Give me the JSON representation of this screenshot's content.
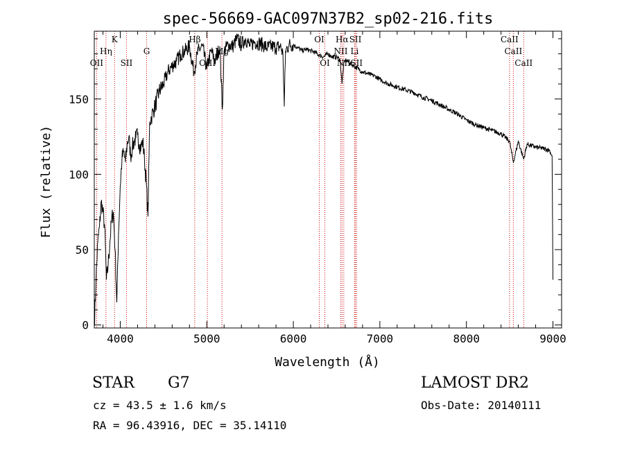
{
  "chart_data": {
    "type": "line",
    "title": "spec-56669-GAC097N37B2_sp02-216.fits",
    "xlabel": "Wavelength (Å)",
    "ylabel": "Flux (relative)",
    "xlim": [
      3700,
      9100
    ],
    "ylim": [
      -2,
      195
    ],
    "xticks": [
      4000,
      5000,
      6000,
      7000,
      8000,
      9000
    ],
    "yticks": [
      0,
      50,
      100,
      150
    ],
    "series": [
      {
        "x": [
          3700,
          3720,
          3740,
          3760,
          3780,
          3800,
          3820,
          3840,
          3860,
          3880,
          3900,
          3920,
          3940,
          3960,
          3980,
          4000,
          4020,
          4040,
          4060,
          4080,
          4100,
          4120,
          4140,
          4160,
          4180,
          4200,
          4220,
          4240,
          4260,
          4280,
          4300,
          4320,
          4340,
          4360,
          4380,
          4400,
          4450,
          4500,
          4550,
          4600,
          4650,
          4700,
          4750,
          4800,
          4850,
          4900,
          4950,
          5000,
          5050,
          5100,
          5150,
          5180,
          5200,
          5250,
          5300,
          5350,
          5400,
          5450,
          5500,
          5550,
          5600,
          5650,
          5700,
          5750,
          5800,
          5850,
          5880,
          5895,
          5910,
          5950,
          6000,
          6050,
          6100,
          6150,
          6200,
          6250,
          6300,
          6350,
          6400,
          6450,
          6500,
          6540,
          6563,
          6580,
          6600,
          6650,
          6700,
          6750,
          6800,
          6850,
          6900,
          6950,
          7000,
          7100,
          7200,
          7300,
          7400,
          7500,
          7600,
          7700,
          7800,
          7900,
          8000,
          8100,
          8200,
          8300,
          8400,
          8498,
          8542,
          8600,
          8662,
          8700,
          8800,
          8900,
          8960,
          8990,
          9000
        ],
        "y": [
          0,
          30,
          55,
          65,
          82,
          75,
          65,
          30,
          40,
          55,
          70,
          75,
          50,
          15,
          60,
          92,
          110,
          115,
          108,
          120,
          125,
          112,
          118,
          122,
          124,
          126,
          120,
          118,
          122,
          110,
          95,
          72,
          135,
          138,
          142,
          145,
          155,
          160,
          168,
          172,
          175,
          180,
          182,
          185,
          168,
          182,
          185,
          170,
          182,
          175,
          185,
          143,
          182,
          186,
          185,
          190,
          186,
          190,
          185,
          188,
          187,
          186,
          184,
          185,
          184,
          185,
          180,
          145,
          182,
          186,
          186,
          184,
          182,
          183,
          182,
          181,
          179,
          178,
          180,
          178,
          178,
          176,
          160,
          172,
          176,
          174,
          172,
          170,
          168,
          167,
          166,
          165,
          163,
          160,
          158,
          156,
          154,
          151,
          149,
          146,
          143,
          140,
          136,
          133,
          131,
          129,
          127,
          122,
          108,
          122,
          110,
          120,
          118,
          117,
          116,
          112,
          30
        ]
      }
    ],
    "line_labels": [
      {
        "text": "OII",
        "x": 3727,
        "row": 3
      },
      {
        "text": "Hη",
        "x": 3835,
        "row": 2
      },
      {
        "text": "K",
        "x": 3934,
        "row": 1
      },
      {
        "text": "SII",
        "x": 4072,
        "row": 3
      },
      {
        "text": "G",
        "x": 4305,
        "row": 2
      },
      {
        "text": "Hβ",
        "x": 4861,
        "row": 1
      },
      {
        "text": "OIII",
        "x": 5007,
        "row": 3
      },
      {
        "text": "Mg",
        "x": 5175,
        "row": 2
      },
      {
        "text": "OI",
        "x": 6300,
        "row": 1
      },
      {
        "text": "OI",
        "x": 6364,
        "row": 3
      },
      {
        "text": "Hα",
        "x": 6563,
        "row": 1
      },
      {
        "text": "NII",
        "x": 6548,
        "row": 2
      },
      {
        "text": "NII",
        "x": 6583,
        "row": 3
      },
      {
        "text": "SII",
        "x": 6717,
        "row": 1
      },
      {
        "text": "Li",
        "x": 6708,
        "row": 2
      },
      {
        "text": "SII",
        "x": 6731,
        "row": 3
      },
      {
        "text": "CaII",
        "x": 8498,
        "row": 1
      },
      {
        "text": "CaII",
        "x": 8542,
        "row": 2
      },
      {
        "text": "CaII",
        "x": 8662,
        "row": 3
      }
    ],
    "grid": false,
    "colors": {
      "spectrum": "#000000",
      "line_markers": "#cc0000",
      "axes": "#000000"
    }
  },
  "info": {
    "object_type": "STAR",
    "subclass": "G7",
    "survey": "LAMOST DR2",
    "redshift": "cz = 43.5 ± 1.6 km/s",
    "obs_date": "Obs-Date: 20140111",
    "coords": "RA =  96.43916, DEC =  35.14110"
  }
}
